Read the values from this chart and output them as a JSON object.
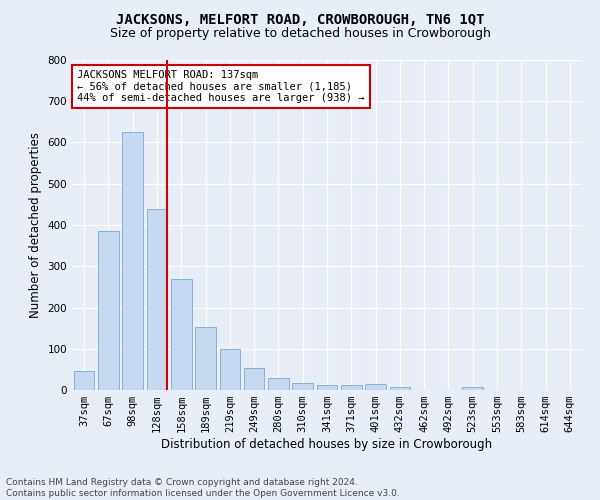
{
  "title": "JACKSONS, MELFORT ROAD, CROWBOROUGH, TN6 1QT",
  "subtitle": "Size of property relative to detached houses in Crowborough",
  "xlabel": "Distribution of detached houses by size in Crowborough",
  "ylabel": "Number of detached properties",
  "categories": [
    "37sqm",
    "67sqm",
    "98sqm",
    "128sqm",
    "158sqm",
    "189sqm",
    "219sqm",
    "249sqm",
    "280sqm",
    "310sqm",
    "341sqm",
    "371sqm",
    "401sqm",
    "432sqm",
    "462sqm",
    "492sqm",
    "523sqm",
    "553sqm",
    "583sqm",
    "614sqm",
    "644sqm"
  ],
  "values": [
    47,
    385,
    625,
    438,
    270,
    153,
    99,
    53,
    28,
    18,
    13,
    12,
    15,
    7,
    0,
    0,
    8,
    0,
    0,
    0,
    0
  ],
  "bar_color": "#c5d8f0",
  "bar_edge_color": "#7aaad0",
  "marker_color": "#cc0000",
  "annotation_text": "JACKSONS MELFORT ROAD: 137sqm\n← 56% of detached houses are smaller (1,185)\n44% of semi-detached houses are larger (938) →",
  "annotation_box_edge": "#cc0000",
  "ylim": [
    0,
    800
  ],
  "yticks": [
    0,
    100,
    200,
    300,
    400,
    500,
    600,
    700,
    800
  ],
  "footer": "Contains HM Land Registry data © Crown copyright and database right 2024.\nContains public sector information licensed under the Open Government Licence v3.0.",
  "bg_color": "#e8eef8",
  "plot_bg_color": "#e8eef8",
  "grid_color": "#ffffff",
  "title_fontsize": 10,
  "subtitle_fontsize": 9,
  "axis_label_fontsize": 8.5,
  "tick_fontsize": 7.5,
  "annotation_fontsize": 7.5,
  "footer_fontsize": 6.5
}
